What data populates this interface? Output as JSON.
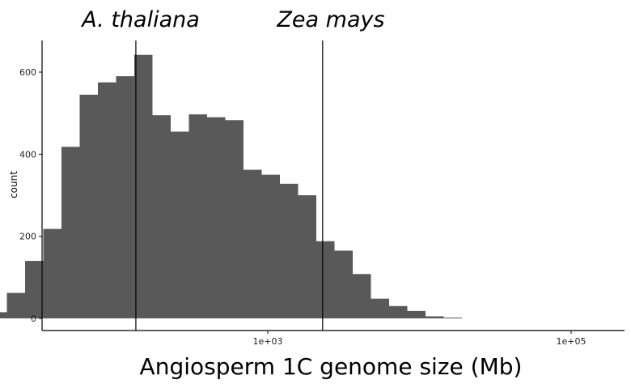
{
  "chart_data": {
    "type": "bar",
    "subtype": "histogram",
    "xlabel": "Angiosperm 1C genome size (Mb)",
    "ylabel": "count",
    "x_scale": "log10",
    "x_tick_labels": [
      "1e+03",
      "1e+05"
    ],
    "x_ticks": [
      1000,
      100000
    ],
    "y_ticks": [
      0,
      200,
      400,
      600
    ],
    "ylim": [
      0,
      680
    ],
    "grid": false,
    "legend": "none",
    "bar_color": "#595959",
    "bins_log10": [
      [
        0.6,
        0.68,
        1
      ],
      [
        0.84,
        0.92,
        2
      ],
      [
        0.92,
        1.0,
        2
      ],
      [
        1.0,
        1.08,
        2
      ],
      [
        1.08,
        1.16,
        2
      ],
      [
        1.16,
        1.28,
        15
      ],
      [
        1.28,
        1.4,
        62
      ],
      [
        1.4,
        1.52,
        140
      ],
      [
        1.52,
        1.64,
        218
      ],
      [
        1.64,
        1.76,
        418
      ],
      [
        1.76,
        1.88,
        545
      ],
      [
        1.88,
        2.0,
        575
      ],
      [
        2.0,
        2.12,
        590
      ],
      [
        2.12,
        2.24,
        642
      ],
      [
        2.24,
        2.36,
        495
      ],
      [
        2.36,
        2.48,
        455
      ],
      [
        2.48,
        2.6,
        497
      ],
      [
        2.6,
        2.72,
        490
      ],
      [
        2.72,
        2.84,
        483
      ],
      [
        2.84,
        2.96,
        362
      ],
      [
        2.96,
        3.08,
        350
      ],
      [
        3.08,
        3.2,
        328
      ],
      [
        3.2,
        3.32,
        300
      ],
      [
        3.32,
        3.44,
        188
      ],
      [
        3.44,
        3.56,
        165
      ],
      [
        3.56,
        3.68,
        108
      ],
      [
        3.68,
        3.8,
        48
      ],
      [
        3.8,
        3.92,
        30
      ],
      [
        3.92,
        4.04,
        18
      ],
      [
        4.04,
        4.16,
        5
      ],
      [
        4.16,
        4.28,
        2
      ]
    ],
    "reference_lines": [
      {
        "label": "A. thaliana",
        "x": 135
      },
      {
        "label": "Zea mays",
        "x": 2300
      }
    ]
  }
}
